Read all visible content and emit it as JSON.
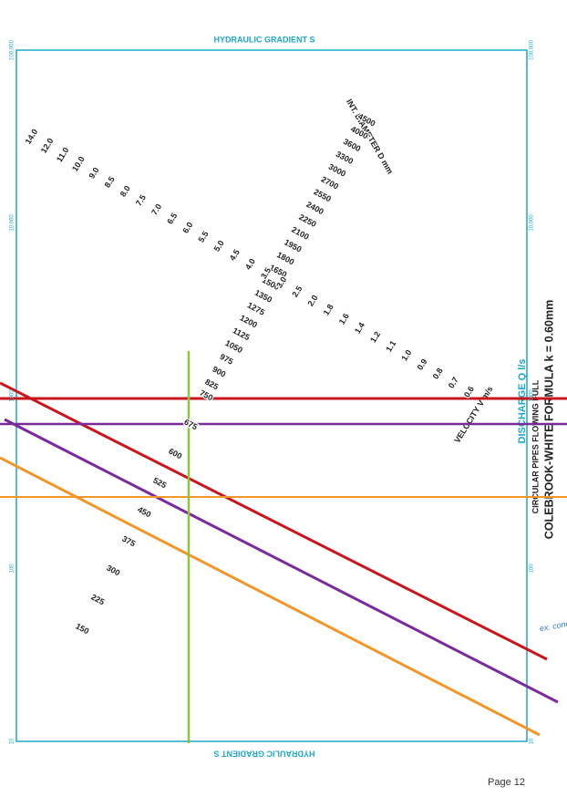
{
  "header": {
    "top_title": "HYDRAULIC GRADIENT S",
    "bottom_title": "HYDRAULIC GRADIENT S"
  },
  "side": {
    "discharge": "DISCHARGE Q l/s",
    "subtitle": "CIRCULAR PIPES FLOWING FULL",
    "formula": "COLEBROOK-WHITE FORMULA  k = 0.60mm"
  },
  "axis_labels": {
    "diameter": "INT. DIAMETER D mm",
    "velocity": "VELOCITY V m/s"
  },
  "discharge_ticks": [
    "100,000",
    "10,000",
    "1000",
    "100",
    "10"
  ],
  "diameters": [
    "150",
    "225",
    "300",
    "375",
    "450",
    "525",
    "600",
    "675",
    "750",
    "825",
    "900",
    "975",
    "1050",
    "1125",
    "1200",
    "1275",
    "1350",
    "1500",
    "1650",
    "1800",
    "1950",
    "2100",
    "2250",
    "2400",
    "2550",
    "2700",
    "3000",
    "3300",
    "3600",
    "4000",
    "4500"
  ],
  "velocities": [
    "14.0",
    "12.0",
    "11.0",
    "10.0",
    "9.0",
    "8.5",
    "8.0",
    "7.5",
    "7.0",
    "6.5",
    "6.0",
    "5.5",
    "5.0",
    "4.5",
    "4.0",
    "3.5",
    "3.0",
    "2.5",
    "2.0",
    "1.8",
    "1.6",
    "1.4",
    "1.2",
    "1.1",
    "1.0",
    "0.9",
    "0.8",
    "0.7",
    "0.6"
  ],
  "annotation": "ex. conc. pipe",
  "footer": "Page 12"
}
